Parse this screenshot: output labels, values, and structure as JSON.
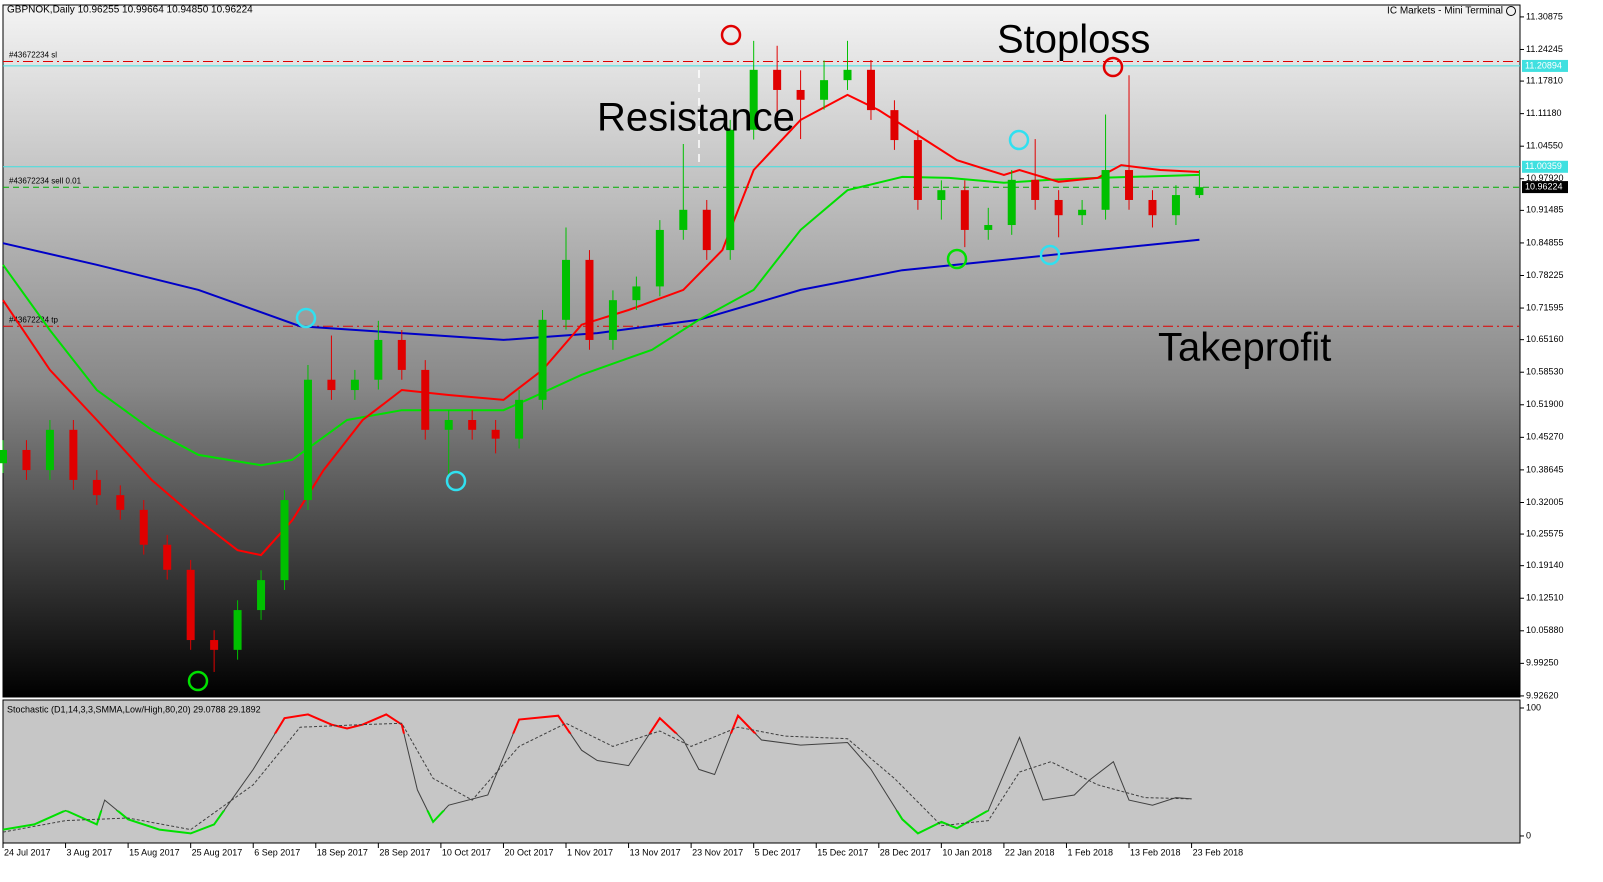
{
  "chart_data": [
    {
      "type": "candlestick",
      "title": "GBPNOK,Daily  10.96255 10.99664 10.94850 10.96224",
      "subtitle": "IC Markets - Mini Terminal",
      "annotations": [
        "Resistance",
        "Stoploss",
        "Takeprofit"
      ],
      "up_color": "#00c000",
      "down_color": "#e00000",
      "x": [
        0,
        3,
        6,
        9,
        12,
        15,
        18,
        21,
        24,
        27,
        30,
        33,
        36,
        39,
        42,
        45,
        48,
        51,
        54,
        57,
        60,
        63,
        66,
        69,
        72,
        75,
        78,
        81,
        84,
        87,
        90,
        93,
        96,
        99,
        102,
        105,
        108,
        111,
        114,
        117,
        120,
        123,
        126,
        129,
        132,
        135,
        138,
        141,
        144,
        147,
        150,
        153
      ],
      "open": [
        10.4,
        10.427,
        10.386,
        10.468,
        10.366,
        10.335,
        10.305,
        10.234,
        10.183,
        10.04,
        10.02,
        10.101,
        10.162,
        10.325,
        10.57,
        10.549,
        10.57,
        10.651,
        10.59,
        10.468,
        10.488,
        10.468,
        10.45,
        10.529,
        10.692,
        10.814,
        10.651,
        10.732,
        10.76,
        10.875,
        10.916,
        10.834,
        11.079,
        11.201,
        11.16,
        11.14,
        11.18,
        11.201,
        11.119,
        11.058,
        10.936,
        10.956,
        10.875,
        10.885,
        10.977,
        10.936,
        10.905,
        10.916,
        10.997,
        10.936,
        10.905,
        10.946
      ],
      "high": [
        10.447,
        10.447,
        10.488,
        10.488,
        10.386,
        10.355,
        10.325,
        10.254,
        10.203,
        10.06,
        10.121,
        10.182,
        10.345,
        10.6,
        10.66,
        10.59,
        10.69,
        10.671,
        10.61,
        10.508,
        10.508,
        10.488,
        10.549,
        10.712,
        10.88,
        10.834,
        10.752,
        10.78,
        10.895,
        11.05,
        10.936,
        11.099,
        11.26,
        11.25,
        11.2,
        11.22,
        11.26,
        11.221,
        11.139,
        11.078,
        10.976,
        10.976,
        10.92,
        10.997,
        11.06,
        10.956,
        10.936,
        11.11,
        11.19,
        10.956,
        10.966,
        10.997
      ],
      "low": [
        10.38,
        10.366,
        10.366,
        10.346,
        10.315,
        10.285,
        10.214,
        10.163,
        10.02,
        9.975,
        10.0,
        10.081,
        10.142,
        10.305,
        10.529,
        10.529,
        10.55,
        10.57,
        10.448,
        10.37,
        10.448,
        10.42,
        10.43,
        10.509,
        10.672,
        10.631,
        10.631,
        10.712,
        10.74,
        10.855,
        10.814,
        10.814,
        11.059,
        11.1,
        11.06,
        11.12,
        11.16,
        11.099,
        11.038,
        10.916,
        10.896,
        10.84,
        10.855,
        10.865,
        10.916,
        10.86,
        10.885,
        10.896,
        10.916,
        10.88,
        10.885,
        10.94
      ],
      "close": [
        10.427,
        10.386,
        10.468,
        10.366,
        10.335,
        10.305,
        10.234,
        10.183,
        10.04,
        10.02,
        10.101,
        10.162,
        10.325,
        10.57,
        10.549,
        10.57,
        10.651,
        10.59,
        10.468,
        10.488,
        10.468,
        10.45,
        10.529,
        10.692,
        10.814,
        10.651,
        10.732,
        10.76,
        10.875,
        10.916,
        10.834,
        11.079,
        11.201,
        11.16,
        11.14,
        11.18,
        11.201,
        11.119,
        11.058,
        10.936,
        10.956,
        10.875,
        10.885,
        10.977,
        10.936,
        10.905,
        10.916,
        10.997,
        10.936,
        10.905,
        10.946,
        10.962
      ],
      "moving_averages": [
        {
          "color": "#0000c8",
          "x": [
            0,
            12,
            25,
            38,
            51,
            64,
            76,
            89,
            102,
            115,
            128,
            140,
            153
          ],
          "values": [
            10.848,
            10.804,
            10.753,
            10.679,
            10.665,
            10.651,
            10.665,
            10.692,
            10.753,
            10.793,
            10.814,
            10.834,
            10.855
          ]
        },
        {
          "color": "#00e000",
          "x": [
            0,
            6,
            12,
            19,
            25,
            33,
            37,
            44,
            51,
            57,
            64,
            67,
            74,
            83,
            89,
            96,
            102,
            108,
            115,
            121,
            128,
            134,
            140,
            153
          ],
          "values": [
            10.804,
            10.671,
            10.549,
            10.468,
            10.417,
            10.396,
            10.407,
            10.488,
            10.508,
            10.508,
            10.508,
            10.529,
            10.58,
            10.631,
            10.692,
            10.753,
            10.875,
            10.956,
            10.983,
            10.981,
            10.971,
            10.977,
            10.981,
            10.987
          ]
        },
        {
          "color": "#ff0000",
          "x": [
            0,
            6,
            12,
            19,
            25,
            30,
            33,
            37,
            41,
            46,
            51,
            57,
            64,
            69,
            74,
            80,
            87,
            92,
            96,
            102,
            108,
            112,
            117,
            122,
            128,
            130,
            135,
            140,
            143,
            148,
            153
          ],
          "values": [
            10.732,
            10.59,
            10.488,
            10.366,
            10.284,
            10.223,
            10.213,
            10.284,
            10.386,
            10.488,
            10.549,
            10.539,
            10.529,
            10.59,
            10.682,
            10.712,
            10.753,
            10.834,
            10.997,
            11.099,
            11.15,
            11.119,
            11.068,
            11.017,
            10.987,
            10.997,
            10.973,
            10.981,
            11.007,
            10.997,
            10.993
          ]
        }
      ],
      "orders": [
        {
          "label": "#43672234 sl",
          "value": 11.218,
          "color": "#e00000"
        },
        {
          "label": "#43672234 sell 0.01",
          "value": 10.962,
          "color": "#00b000"
        },
        {
          "label": "#43672234 tp",
          "value": 10.679,
          "color": "#e00000"
        }
      ],
      "price_levels": [
        11.20894,
        11.00359
      ],
      "price_level_color": "#40e0e0",
      "last_price": 10.96224,
      "xlim": [
        0,
        194
      ],
      "xticks": [
        {
          "value": 0,
          "label": "24 Jul 2017"
        },
        {
          "value": 8,
          "label": "3 Aug 2017"
        },
        {
          "value": 16,
          "label": "15 Aug 2017"
        },
        {
          "value": 24,
          "label": "25 Aug 2017"
        },
        {
          "value": 32,
          "label": "6 Sep 2017"
        },
        {
          "value": 40,
          "label": "18 Sep 2017"
        },
        {
          "value": 48,
          "label": "28 Sep 2017"
        },
        {
          "value": 56,
          "label": "10 Oct 2017"
        },
        {
          "value": 64,
          "label": "20 Oct 2017"
        },
        {
          "value": 72,
          "label": "1 Nov 2017"
        },
        {
          "value": 80,
          "label": "13 Nov 2017"
        },
        {
          "value": 88,
          "label": "23 Nov 2017"
        },
        {
          "value": 96,
          "label": "5 Dec 2017"
        },
        {
          "value": 104,
          "label": "15 Dec 2017"
        },
        {
          "value": 112,
          "label": "28 Dec 2017"
        },
        {
          "value": 120,
          "label": "10 Jan 2018"
        },
        {
          "value": 128,
          "label": "22 Jan 2018"
        },
        {
          "value": 136,
          "label": "1 Feb 2018"
        },
        {
          "value": 144,
          "label": "13 Feb 2018"
        },
        {
          "value": 152,
          "label": "23 Feb 2018"
        }
      ],
      "ylim": [
        9.924,
        11.333
      ],
      "yticks": [
        11.30875,
        11.24245,
        {
          "value": 11.1781,
          "label": "11.17810"
        },
        {
          "value": 11.1118,
          "label": "11.11180"
        },
        {
          "value": 11.0455,
          "label": "11.04550"
        },
        {
          "value": 10.9792,
          "label": "10.97920"
        },
        10.91485,
        10.84855,
        10.78225,
        10.71595,
        {
          "value": 10.6516,
          "label": "10.65160"
        },
        {
          "value": 10.5853,
          "label": "10.58530"
        },
        {
          "value": 10.519,
          "label": "10.51900"
        },
        {
          "value": 10.4527,
          "label": "10.45270"
        },
        10.38645,
        10.32005,
        10.25575,
        {
          "value": 10.1914,
          "label": "10.19140"
        },
        {
          "value": 10.1251,
          "label": "10.12510"
        },
        {
          "value": 10.0588,
          "label": "10.05880"
        },
        {
          "value": 9.9925,
          "label": "9.99250"
        },
        {
          "value": 9.9262,
          "label": "9.92620"
        }
      ],
      "grid": false
    },
    {
      "type": "line",
      "title": "Stochastic (D1,14,3,3,SMMA,Low/High,80,20) 29.0788 29.1892",
      "levels": [
        80,
        20
      ],
      "overbought_color": "#ff0000",
      "oversold_color": "#00e000",
      "series": [
        {
          "color": "#404040",
          "x": [
            0,
            4,
            8,
            12,
            13,
            16,
            20,
            24,
            27,
            32,
            36,
            39,
            42,
            44,
            46,
            49,
            51,
            53,
            55,
            57,
            62,
            66,
            71,
            74,
            76,
            80,
            84,
            87,
            89,
            91,
            94,
            97,
            102,
            108,
            111,
            115,
            117,
            120,
            122,
            126,
            130,
            133,
            137,
            139,
            142,
            144,
            147,
            150,
            152
          ],
          "values": [
            5,
            9,
            20,
            9,
            28,
            13,
            5,
            2,
            9,
            52,
            92,
            95,
            87,
            84,
            87,
            95,
            87,
            36,
            11,
            24,
            32,
            91,
            94,
            67,
            59,
            55,
            92,
            75,
            52,
            48,
            94,
            75,
            71,
            73,
            52,
            13,
            2,
            11,
            6,
            20,
            77,
            28,
            32,
            44,
            58,
            28,
            24,
            30,
            29
          ]
        },
        {
          "color": "#404040",
          "dashed": true,
          "x": [
            0,
            8,
            16,
            24,
            32,
            38,
            46,
            51,
            55,
            60,
            66,
            72,
            78,
            84,
            88,
            94,
            100,
            108,
            114,
            120,
            126,
            130,
            134,
            140,
            146,
            152
          ],
          "values": [
            3,
            12,
            14,
            5,
            40,
            85,
            87,
            88,
            45,
            28,
            70,
            88,
            70,
            82,
            70,
            85,
            78,
            76,
            45,
            8,
            12,
            50,
            58,
            40,
            30,
            29
          ]
        }
      ],
      "ylim": [
        -5.5,
        103.9
      ],
      "yticks": [
        100,
        0
      ]
    }
  ]
}
